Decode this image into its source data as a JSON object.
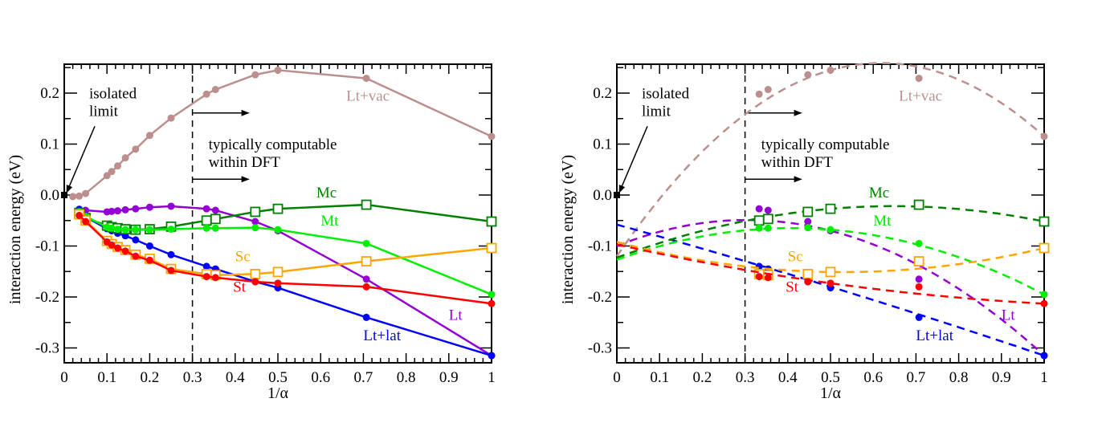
{
  "chart_data": [
    {
      "type": "line",
      "panel": "left",
      "xlabel": "1/α",
      "ylabel": "interaction energy (eV)",
      "xlim": [
        0,
        1
      ],
      "ylim": [
        -0.33,
        0.255
      ],
      "xticks": [
        0,
        0.1,
        0.2,
        0.3,
        0.4,
        0.5,
        0.6,
        0.7,
        0.8,
        0.9,
        1
      ],
      "xtick_labels": [
        "0",
        "0.1",
        "0.2",
        "0.3",
        "0.4",
        "0.5",
        "0.6",
        "0.7",
        "0.8",
        "0.9",
        "1"
      ],
      "yticks": [
        -0.3,
        -0.2,
        -0.1,
        0.0,
        0.1,
        0.2
      ],
      "ytick_labels": [
        "-0.3",
        "-0.2",
        "-0.1",
        "0.0",
        "0.1",
        "0.2"
      ],
      "line_style": "solid",
      "isolated_limit_point": {
        "x": 0,
        "y": 0
      },
      "threshold_x": 0.3,
      "annotations": {
        "isolated": [
          "isolated",
          "limit"
        ],
        "computable": [
          "typically computable",
          "within DFT"
        ]
      },
      "series": [
        {
          "name": "Lt+vac",
          "color": "#bc8f8f",
          "marker": "circle",
          "x": [
            0.02,
            0.035,
            0.05,
            0.1,
            0.111,
            0.125,
            0.143,
            0.167,
            0.2,
            0.25,
            0.333,
            0.354,
            0.447,
            0.5,
            0.707,
            1.0
          ],
          "y": [
            -0.003,
            -0.002,
            0.003,
            0.038,
            0.046,
            0.057,
            0.073,
            0.09,
            0.117,
            0.151,
            0.198,
            0.207,
            0.236,
            0.245,
            0.229,
            0.115
          ]
        },
        {
          "name": "Lt",
          "color": "#9400d3",
          "marker": "circle",
          "x": [
            0.035,
            0.05,
            0.1,
            0.111,
            0.125,
            0.143,
            0.167,
            0.2,
            0.25,
            0.333,
            0.354,
            0.447,
            0.5,
            0.707,
            1.0
          ],
          "y": [
            -0.028,
            -0.03,
            -0.033,
            -0.032,
            -0.031,
            -0.029,
            -0.027,
            -0.024,
            -0.022,
            -0.027,
            -0.03,
            -0.052,
            -0.07,
            -0.165,
            -0.315
          ]
        },
        {
          "name": "Lt+lat",
          "color": "#0000ff",
          "marker": "circle",
          "x": [
            0.035,
            0.05,
            0.1,
            0.111,
            0.125,
            0.143,
            0.167,
            0.2,
            0.25,
            0.333,
            0.354,
            0.447,
            0.5,
            0.707,
            1.0
          ],
          "y": [
            -0.028,
            -0.043,
            -0.066,
            -0.07,
            -0.075,
            -0.08,
            -0.088,
            -0.1,
            -0.117,
            -0.14,
            -0.145,
            -0.17,
            -0.182,
            -0.24,
            -0.315
          ]
        },
        {
          "name": "Mc",
          "color": "#008000",
          "marker": "square",
          "x": [
            0.035,
            0.05,
            0.1,
            0.111,
            0.125,
            0.143,
            0.167,
            0.2,
            0.25,
            0.333,
            0.354,
            0.447,
            0.5,
            0.707,
            1.0
          ],
          "y": [
            -0.035,
            -0.045,
            -0.06,
            -0.063,
            -0.065,
            -0.067,
            -0.068,
            -0.067,
            -0.062,
            -0.05,
            -0.047,
            -0.033,
            -0.027,
            -0.019,
            -0.052
          ]
        },
        {
          "name": "Mt",
          "color": "#00ee00",
          "marker": "circle",
          "x": [
            0.035,
            0.05,
            0.1,
            0.111,
            0.125,
            0.143,
            0.167,
            0.2,
            0.25,
            0.333,
            0.354,
            0.447,
            0.5,
            0.707,
            1.0
          ],
          "y": [
            -0.033,
            -0.042,
            -0.063,
            -0.065,
            -0.067,
            -0.068,
            -0.068,
            -0.068,
            -0.067,
            -0.065,
            -0.065,
            -0.064,
            -0.068,
            -0.095,
            -0.195
          ]
        },
        {
          "name": "Sc",
          "color": "#ffa500",
          "marker": "square",
          "x": [
            0.035,
            0.05,
            0.1,
            0.111,
            0.125,
            0.143,
            0.167,
            0.2,
            0.25,
            0.333,
            0.354,
            0.447,
            0.5,
            0.707,
            1.0
          ],
          "y": [
            -0.038,
            -0.05,
            -0.09,
            -0.096,
            -0.102,
            -0.108,
            -0.117,
            -0.125,
            -0.145,
            -0.155,
            -0.157,
            -0.155,
            -0.151,
            -0.13,
            -0.104
          ]
        },
        {
          "name": "St",
          "color": "#ff0000",
          "marker": "circle",
          "x": [
            0.035,
            0.05,
            0.1,
            0.111,
            0.125,
            0.143,
            0.167,
            0.2,
            0.25,
            0.333,
            0.354,
            0.447,
            0.5,
            0.707,
            1.0
          ],
          "y": [
            -0.04,
            -0.052,
            -0.092,
            -0.098,
            -0.104,
            -0.11,
            -0.12,
            -0.128,
            -0.148,
            -0.16,
            -0.162,
            -0.17,
            -0.173,
            -0.18,
            -0.213
          ]
        }
      ],
      "series_labels": [
        {
          "name": "Lt+vac",
          "at": [
            0.66,
            0.185
          ]
        },
        {
          "name": "Mc",
          "at": [
            0.59,
            -0.005
          ]
        },
        {
          "name": "Mt",
          "at": [
            0.6,
            -0.06
          ]
        },
        {
          "name": "Sc",
          "at": [
            0.4,
            -0.13
          ]
        },
        {
          "name": "St",
          "at": [
            0.395,
            -0.19
          ]
        },
        {
          "name": "Lt+lat",
          "at": [
            0.7,
            -0.285
          ]
        },
        {
          "name": "Lt",
          "at": [
            0.9,
            -0.245
          ]
        }
      ]
    },
    {
      "type": "line",
      "panel": "right",
      "xlabel": "1/α",
      "ylabel": "interaction energy (eV)",
      "xlim": [
        0,
        1
      ],
      "ylim": [
        -0.33,
        0.255
      ],
      "xticks": [
        0,
        0.1,
        0.2,
        0.3,
        0.4,
        0.5,
        0.6,
        0.7,
        0.8,
        0.9,
        1
      ],
      "xtick_labels": [
        "0",
        "0.1",
        "0.2",
        "0.3",
        "0.4",
        "0.5",
        "0.6",
        "0.7",
        "0.8",
        "0.9",
        "1"
      ],
      "yticks": [
        -0.3,
        -0.2,
        -0.1,
        0.0,
        0.1,
        0.2
      ],
      "ytick_labels": [
        "-0.3",
        "-0.2",
        "-0.1",
        "0.0",
        "0.1",
        "0.2"
      ],
      "line_style": "dashed quadratic fit",
      "isolated_limit_point": {
        "x": 0,
        "y": 0
      },
      "threshold_x": 0.3,
      "annotations": {
        "isolated": [
          "isolated",
          "limit"
        ],
        "computable": [
          "typically computable",
          "within DFT"
        ]
      },
      "series": [
        {
          "name": "Lt+vac",
          "color": "#bc8f8f",
          "marker": "circle",
          "x": [
            0.333,
            0.354,
            0.447,
            0.5,
            0.707,
            1.0
          ],
          "y": [
            0.198,
            0.207,
            0.236,
            0.245,
            0.229,
            0.115
          ],
          "fit": [
            -0.12,
            1.225,
            -0.99
          ]
        },
        {
          "name": "Lt",
          "color": "#9400d3",
          "marker": "circle",
          "x": [
            0.333,
            0.354,
            0.447,
            0.5,
            0.707,
            1.0
          ],
          "y": [
            -0.027,
            -0.03,
            -0.052,
            -0.07,
            -0.165,
            -0.315
          ],
          "fit": [
            -0.1,
            0.335,
            -0.55
          ]
        },
        {
          "name": "Lt+lat",
          "color": "#0000ff",
          "marker": "circle",
          "x": [
            0.333,
            0.354,
            0.447,
            0.5,
            0.707,
            1.0
          ],
          "y": [
            -0.14,
            -0.145,
            -0.17,
            -0.182,
            -0.24,
            -0.315
          ],
          "fit": [
            -0.058,
            -0.231,
            -0.026
          ]
        },
        {
          "name": "Mc",
          "color": "#008000",
          "marker": "square",
          "x": [
            0.333,
            0.354,
            0.447,
            0.5,
            0.707,
            1.0
          ],
          "y": [
            -0.05,
            -0.047,
            -0.033,
            -0.027,
            -0.019,
            -0.052
          ],
          "fit": [
            -0.123,
            0.313,
            -0.242
          ]
        },
        {
          "name": "Mt",
          "color": "#00ee00",
          "marker": "circle",
          "x": [
            0.333,
            0.354,
            0.447,
            0.5,
            0.707,
            1.0
          ],
          "y": [
            -0.065,
            -0.065,
            -0.064,
            -0.068,
            -0.095,
            -0.195
          ],
          "fit": [
            -0.127,
            0.304,
            -0.372
          ]
        },
        {
          "name": "Sc",
          "color": "#ffa500",
          "marker": "square",
          "x": [
            0.333,
            0.354,
            0.447,
            0.5,
            0.707,
            1.0
          ],
          "y": [
            -0.155,
            -0.157,
            -0.155,
            -0.151,
            -0.13,
            -0.104
          ],
          "fit": [
            -0.092,
            -0.224,
            0.212
          ]
        },
        {
          "name": "St",
          "color": "#ff0000",
          "marker": "circle",
          "x": [
            0.333,
            0.354,
            0.447,
            0.5,
            0.707,
            1.0
          ],
          "y": [
            -0.16,
            -0.162,
            -0.17,
            -0.173,
            -0.18,
            -0.213
          ],
          "fit": [
            -0.097,
            -0.188,
            0.072
          ]
        }
      ],
      "series_labels": [
        {
          "name": "Lt+vac",
          "at": [
            0.66,
            0.185
          ]
        },
        {
          "name": "Mc",
          "at": [
            0.59,
            -0.005
          ]
        },
        {
          "name": "Mt",
          "at": [
            0.6,
            -0.06
          ]
        },
        {
          "name": "Sc",
          "at": [
            0.4,
            -0.13
          ]
        },
        {
          "name": "St",
          "at": [
            0.395,
            -0.19
          ]
        },
        {
          "name": "Lt+lat",
          "at": [
            0.7,
            -0.285
          ]
        },
        {
          "name": "Lt",
          "at": [
            0.9,
            -0.245
          ]
        }
      ]
    }
  ]
}
